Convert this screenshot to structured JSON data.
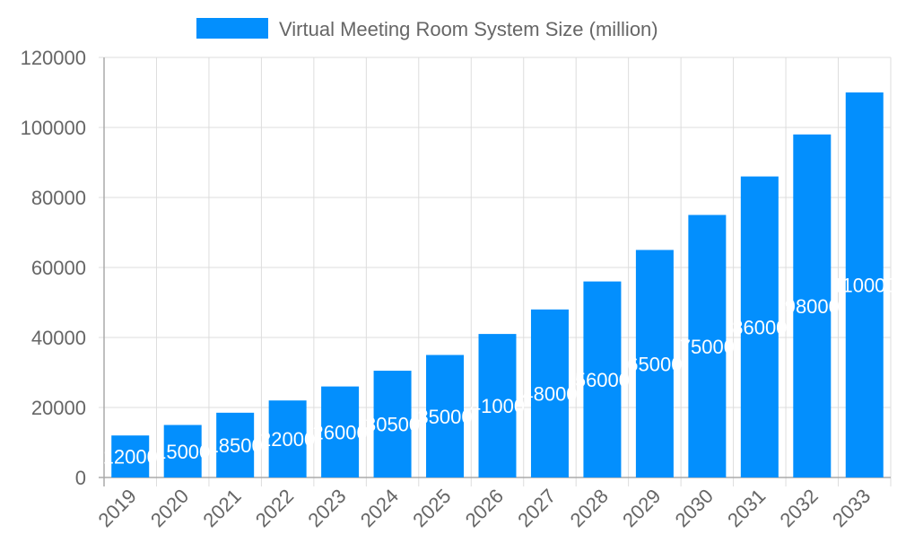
{
  "chart_data": {
    "type": "bar",
    "title": "",
    "xlabel": "",
    "ylabel": "",
    "categories": [
      "2019",
      "2020",
      "2021",
      "2022",
      "2023",
      "2024",
      "2025",
      "2026",
      "2027",
      "2028",
      "2029",
      "2030",
      "2031",
      "2032",
      "2033"
    ],
    "series": [
      {
        "name": "Virtual Meeting Room System Size (million)",
        "values": [
          12000,
          15000,
          18500,
          22000,
          26000,
          30500,
          35000,
          41000,
          48000,
          56000,
          65000,
          75000,
          86000,
          98000,
          110000
        ],
        "color": "#038ffd"
      }
    ],
    "ylim": [
      0,
      120000
    ],
    "yticks": [
      0,
      20000,
      40000,
      60000,
      80000,
      100000,
      120000
    ],
    "grid": true,
    "legend": "top",
    "data_labels": true
  }
}
